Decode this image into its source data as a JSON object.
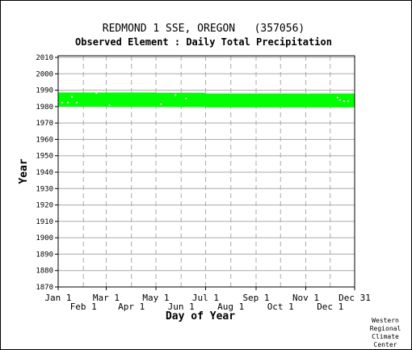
{
  "chart_data": {
    "type": "heatmap",
    "title": "REDMOND 1 SSE, OREGON   (357056)",
    "subtitle": "Observed Element : Daily Total Precipitation",
    "xlabel": "Day of Year",
    "ylabel": "Year",
    "credit": [
      "Western",
      "Regional",
      "Climate",
      "Center"
    ],
    "ylim": [
      1870,
      2011
    ],
    "yticks": [
      1870,
      1880,
      1890,
      1900,
      1910,
      1920,
      1930,
      1940,
      1950,
      1960,
      1970,
      1980,
      1990,
      2000,
      2010
    ],
    "xlim": [
      1,
      365
    ],
    "xticks_top": [
      {
        "label": "Jan 1",
        "day": 1
      },
      {
        "label": "Mar 1",
        "day": 60
      },
      {
        "label": "May 1",
        "day": 121
      },
      {
        "label": "Jul 1",
        "day": 182
      },
      {
        "label": "Sep 1",
        "day": 244
      },
      {
        "label": "Nov 1",
        "day": 305
      },
      {
        "label": "Dec 31",
        "day": 365
      }
    ],
    "xticks_bottom": [
      {
        "label": "Feb 1",
        "day": 32
      },
      {
        "label": "Apr 1",
        "day": 91
      },
      {
        "label": "Jun 1",
        "day": 152
      },
      {
        "label": "Aug 1",
        "day": 213
      },
      {
        "label": "Oct 1",
        "day": 274
      },
      {
        "label": "Dec 1",
        "day": 335
      }
    ],
    "grid": true,
    "fill_color": "#00ff00",
    "data_band": {
      "start_year": 1979,
      "end_year": 1988
    },
    "band_edges": [
      {
        "day_start": 1,
        "day_end": 60,
        "start_year": 1980.0,
        "end_year": 1988.6
      },
      {
        "day_start": 60,
        "day_end": 121,
        "start_year": 1979.8,
        "end_year": 1988.6
      },
      {
        "day_start": 121,
        "day_end": 182,
        "start_year": 1979.7,
        "end_year": 1988.4
      },
      {
        "day_start": 182,
        "day_end": 365,
        "start_year": 1979.5,
        "end_year": 1988.0
      }
    ],
    "missing": [
      {
        "day": 6,
        "year": 1982.5
      },
      {
        "day": 13,
        "year": 1982.5
      },
      {
        "day": 18,
        "year": 1986
      },
      {
        "day": 24,
        "year": 1982.5
      },
      {
        "day": 48,
        "year": 1988.3
      },
      {
        "day": 64,
        "year": 1981
      },
      {
        "day": 127,
        "year": 1981.5
      },
      {
        "day": 145,
        "year": 1987
      },
      {
        "day": 158,
        "year": 1985
      },
      {
        "day": 344,
        "year": 1985.5
      },
      {
        "day": 347,
        "year": 1984
      },
      {
        "day": 352,
        "year": 1983.3
      },
      {
        "day": 357,
        "year": 1983.3
      },
      {
        "day": 308,
        "year": 1988.2
      }
    ]
  }
}
